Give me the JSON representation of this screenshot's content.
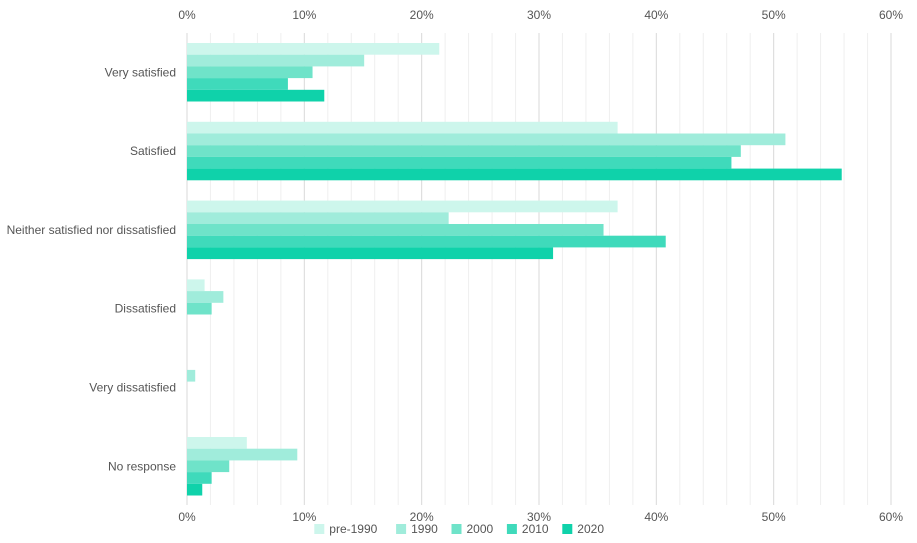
{
  "chart_data": {
    "type": "bar",
    "orientation": "horizontal",
    "title": "",
    "xlabel": "",
    "ylabel": "",
    "xlim": [
      0,
      60
    ],
    "x_ticks": [
      "0%",
      "10%",
      "20%",
      "30%",
      "40%",
      "50%",
      "60%"
    ],
    "categories": [
      "Very satisfied",
      "Satisfied",
      "Neither satisfied nor dissatisfied",
      "Dissatisfied",
      "Very dissatisfied",
      "No response"
    ],
    "series": [
      {
        "name": "pre-1990",
        "color": "#cdf6ec",
        "values": [
          21.5,
          36.7,
          36.7,
          1.5,
          0,
          5.1
        ]
      },
      {
        "name": "1990",
        "color": "#a0ecdb",
        "values": [
          15.1,
          51.0,
          22.3,
          3.1,
          0.7,
          9.4
        ]
      },
      {
        "name": "2000",
        "color": "#6fe3c9",
        "values": [
          10.7,
          47.2,
          35.5,
          2.1,
          0,
          3.6
        ]
      },
      {
        "name": "2010",
        "color": "#3fdabb",
        "values": [
          8.6,
          46.4,
          40.8,
          0,
          0,
          2.1
        ]
      },
      {
        "name": "2020",
        "color": "#0fd2aa",
        "values": [
          11.7,
          55.8,
          31.2,
          0,
          0,
          1.3
        ]
      }
    ],
    "grid": true,
    "legend_position": "bottom-center"
  }
}
